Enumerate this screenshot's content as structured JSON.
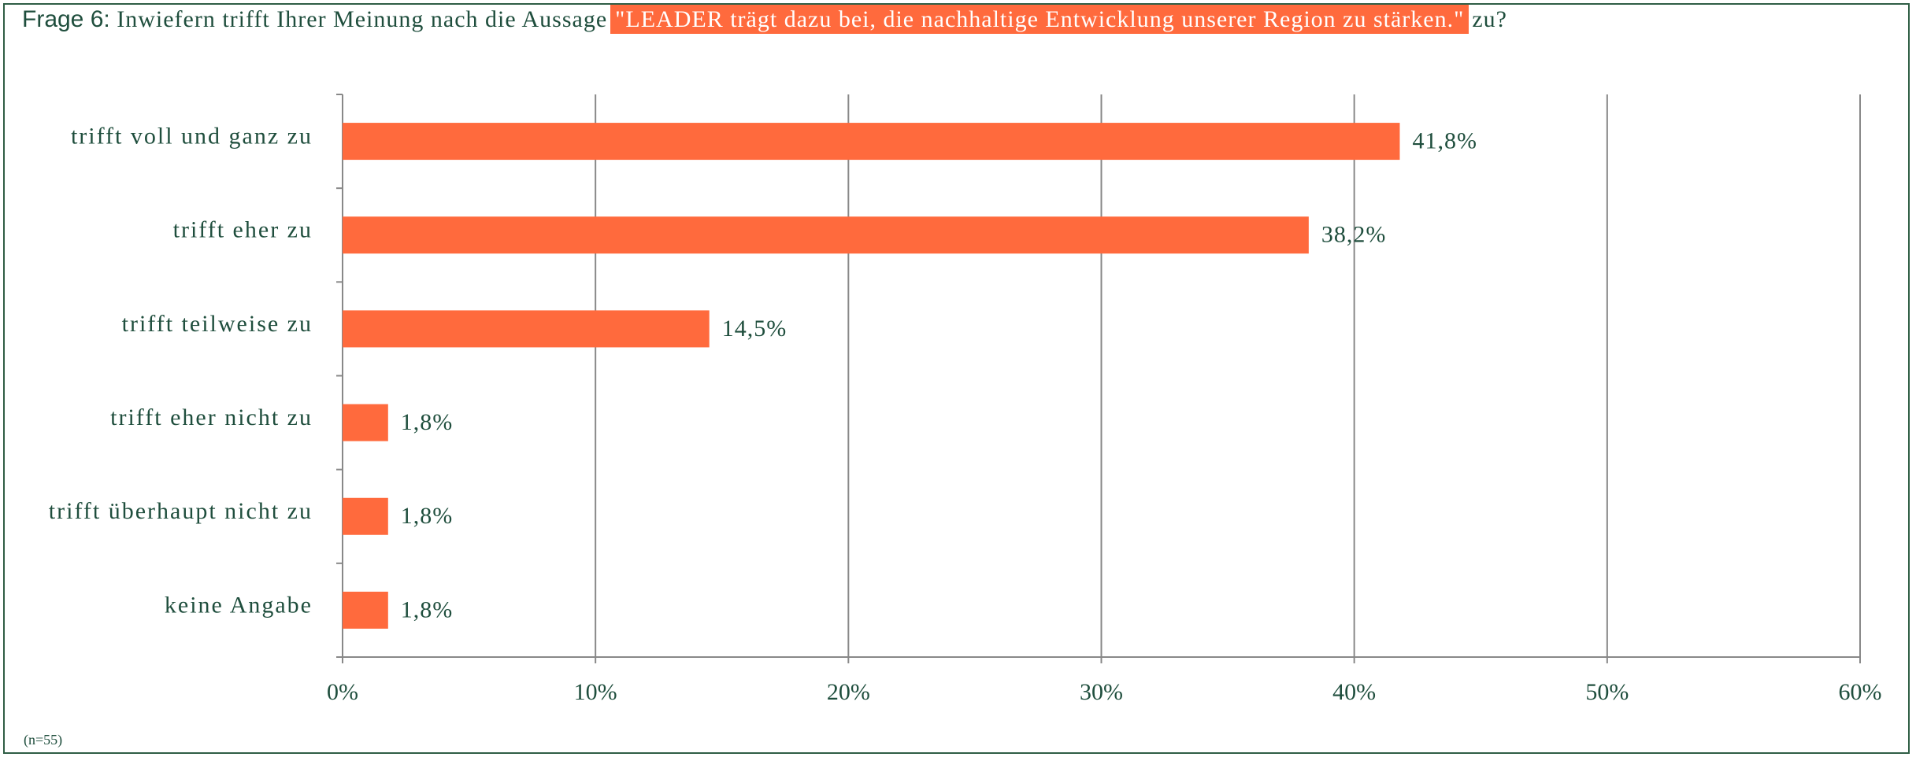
{
  "chart_data": {
    "type": "bar",
    "orientation": "horizontal",
    "title": [
      "Frage 6:",
      "Inwiefern trifft Ihrer Meinung nach die Aussage",
      "\"LEADER trägt dazu bei, die nachhaltige Entwicklung unserer Region zu stärken.\"",
      "zu?"
    ],
    "categories": [
      "trifft voll und ganz zu",
      "trifft eher zu",
      "trifft teilweise zu",
      "trifft eher nicht zu",
      "trifft überhaupt nicht zu",
      "keine Angabe"
    ],
    "values": [
      41.8,
      38.2,
      14.5,
      1.8,
      1.8,
      1.8
    ],
    "value_labels": [
      "41,8%",
      "38,2%",
      "14,5%",
      "1,8%",
      "1,8%",
      "1,8%"
    ],
    "color": "#ff6a3d",
    "xlim": [
      0,
      60
    ],
    "xticks": [
      {
        "value": 0,
        "label": "0%"
      },
      {
        "value": 10,
        "label": "10%"
      },
      {
        "value": 20,
        "label": "20%"
      },
      {
        "value": 30,
        "label": "30%"
      },
      {
        "value": 40,
        "label": "40%"
      },
      {
        "value": 50,
        "label": "50%"
      },
      {
        "value": 60,
        "label": "60%"
      }
    ],
    "grid": true,
    "note": "(n=55)"
  }
}
